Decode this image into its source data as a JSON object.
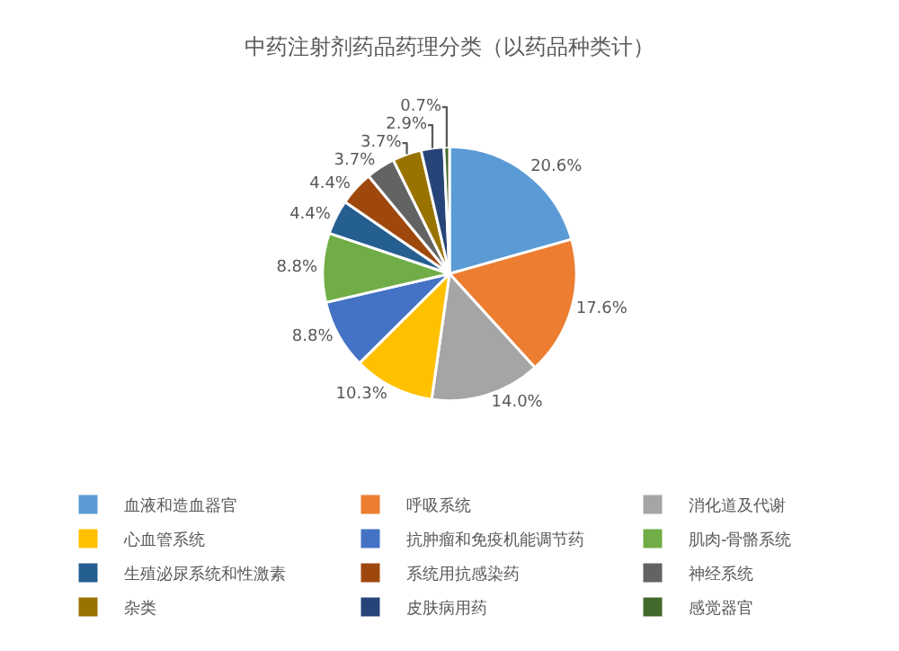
{
  "chart_data": {
    "type": "pie",
    "title": "中药注射剂药品药理分类（以药品种类计）",
    "categories": [
      "血液和造血器官",
      "呼吸系统",
      "消化道及代谢",
      "心血管系统",
      "抗肿瘤和免疫机能调节药",
      "肌肉-骨骼系统",
      "生殖泌尿系统和性激素",
      "系统用抗感染药",
      "神经系统",
      "杂类",
      "皮肤病用药",
      "感觉器官"
    ],
    "values": [
      20.6,
      17.6,
      14.0,
      10.3,
      8.8,
      8.8,
      4.4,
      4.4,
      3.7,
      3.7,
      2.9,
      0.7
    ],
    "value_labels": [
      "20.6%",
      "17.6%",
      "14.0%",
      "10.3%",
      "8.8%",
      "8.8%",
      "4.4%",
      "4.4%",
      "3.7%",
      "3.7%",
      "2.9%",
      "0.7%"
    ],
    "colors": [
      "#5b9bd5",
      "#ed7d31",
      "#a5a5a5",
      "#ffc000",
      "#4472c4",
      "#70ad47",
      "#255e91",
      "#9e480e",
      "#636363",
      "#997300",
      "#264478",
      "#43682b"
    ],
    "legend": "bottom"
  }
}
